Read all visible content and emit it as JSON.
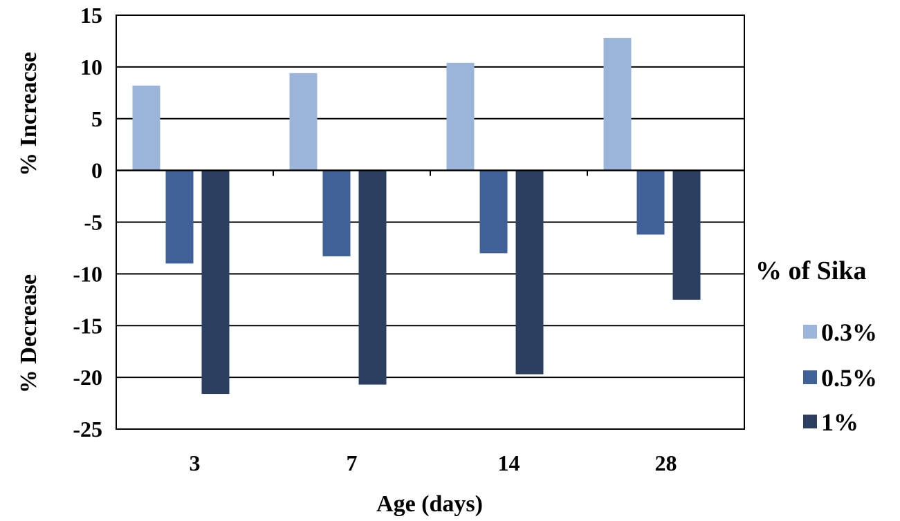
{
  "chart_data": {
    "type": "bar",
    "categories": [
      "3",
      "7",
      "14",
      "28"
    ],
    "series": [
      {
        "name": "0.3%",
        "values": [
          8.2,
          9.4,
          10.4,
          12.8
        ],
        "color": "#9bb5da"
      },
      {
        "name": "0.5%",
        "values": [
          -9.0,
          -8.3,
          -8.0,
          -6.2
        ],
        "color": "#3f6197"
      },
      {
        "name": "1%",
        "values": [
          -21.6,
          -20.7,
          -19.7,
          -12.5
        ],
        "color": "#2c3f60"
      }
    ],
    "xlabel": "Age (days)",
    "ylabel_top": "% Increacse",
    "ylabel_bottom": "% Decrease",
    "ylim": [
      -25,
      15
    ],
    "yticks": [
      15,
      10,
      5,
      0,
      -5,
      -10,
      -15,
      -20,
      -25
    ],
    "grid": true,
    "legend": {
      "title": "% of Sika",
      "placement": "right"
    }
  }
}
